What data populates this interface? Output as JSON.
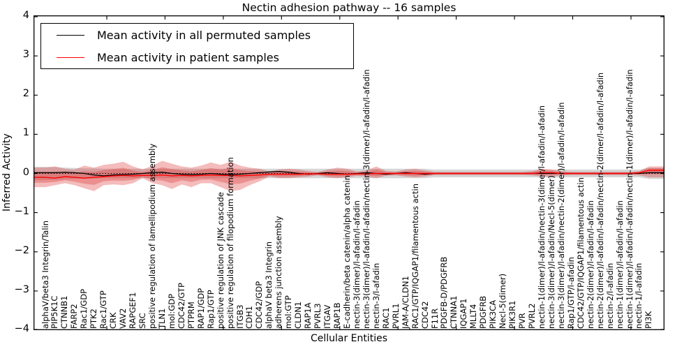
{
  "chart_data": {
    "type": "line",
    "title": "Nectin adhesion pathway -- 16 samples",
    "xlabel": "Cellular Entities",
    "ylabel": "Inferred Activity",
    "ylim": [
      -4,
      4
    ],
    "yticks": [
      4,
      3,
      2,
      1,
      0,
      -1,
      -2,
      -3,
      -4
    ],
    "grid": false,
    "zero_line": "dotted",
    "legend_position": "upper left",
    "colors": {
      "permuted_line": "#000000",
      "patient_line": "#ff0000",
      "patient_band": "#dd3333",
      "permuted_band": "#999999"
    },
    "categories": [
      "alphaV/beta3 Integrin/Talin",
      "PIP5K1C",
      "CTNNB1",
      "FARP2",
      "Rac1/GDP",
      "PTK2",
      "Rac1/GTP",
      "CRK",
      "VAV2",
      "RAPGEF1",
      "SRC",
      "positive regulation of lamellipodium assembly",
      "TLN1",
      "mol:GDP",
      "CDC42/GTP",
      "PTPRM",
      "RAP1/GDP",
      "Rap1/GTP",
      "positive regulation of JNK cascade",
      "positive regulation of filopodium formation",
      "ITGB3",
      "CDH1",
      "CDC42/GDP",
      "alphaV beta3 Integrin",
      "adherens junction assembly",
      "mol:GTP",
      "CLDN1",
      "RAP1A",
      "PVRL3",
      "ITGAV",
      "RAP1B",
      "E-cadherin/beta catenin/alpha catenin",
      "nectin-3(dimer)/l-afadin/l-afadin",
      "nectin-3(dimer)/l-afadin/l-afadin/nectin-3(dimer)/l-afadin/l-afadin",
      "nectin-3/l-afadin",
      "RAC1",
      "PVRL1",
      "JAM-A/CLDN1",
      "RAC1/GTP/IQGAP1/filamentous actin",
      "CDC42",
      "F11R",
      "PDGFB-D/PDGFRB",
      "CTNNA1",
      "IQGAP1",
      "MLLT4",
      "PDGFRB",
      "PIK3CA",
      "Necl-5(dimer)",
      "PIK3R1",
      "PVR",
      "PVRL2",
      "nectin-1(dimer)/l-afadin/nectin-3(dimer/l-afadin/l-afadin",
      "nectin-3(dimer)/l-afadin/Necl-5(dimer)",
      "nectin-3(dimer)/l-afadin/nectin-2(dimer)/l-afadin/l-afadin",
      "Rap1/GTP/l-afadin",
      "CDC42/GTP/IQGAP1/filamentous actin",
      "nectin-2(dimer)/l-afadin/l-afadin",
      "nectin-2(dimer)/l-afadin/l-afadin/nectin-2(dimer/l-afadin/l-afadin",
      "nectin-2/l-afadin",
      "nectin-1(dimer)/l-afadin/l-afadin",
      "nectin-1(dimer)/l-afadin/l-afadin/nectin-1(dimer)/l-afadin/l-afadin",
      "nectin-1/l-afadin",
      "PI3K"
    ],
    "series": [
      {
        "name": "Mean activity in all permuted samples",
        "color": "#000000",
        "values": [
          0.02,
          0.02,
          0.03,
          0.02,
          0.0,
          -0.04,
          -0.06,
          -0.04,
          -0.03,
          -0.02,
          0.0,
          0.02,
          0.03,
          0.0,
          -0.02,
          -0.03,
          -0.02,
          0.0,
          -0.02,
          -0.03,
          -0.02,
          0.0,
          0.02,
          0.04,
          0.05,
          0.03,
          0.0,
          -0.02,
          0.0,
          0.02,
          0.0,
          -0.02,
          0.0,
          0.02,
          0.0,
          -0.02,
          0.0,
          0.02,
          0.0,
          -0.02,
          0.0,
          0.0,
          0.0,
          0.0,
          0.0,
          0.0,
          0.0,
          0.0,
          0.0,
          0.0,
          0.0,
          0.0,
          0.0,
          0.0,
          0.0,
          0.0,
          0.0,
          0.0,
          0.0,
          0.0,
          0.0,
          0.0,
          0.02
        ]
      },
      {
        "name": "Mean activity in patient samples",
        "color": "#ff0000",
        "values": [
          -0.1,
          -0.12,
          -0.08,
          -0.1,
          -0.12,
          -0.1,
          -0.08,
          -0.06,
          -0.05,
          -0.06,
          -0.05,
          -0.05,
          -0.04,
          -0.06,
          -0.05,
          -0.06,
          -0.05,
          -0.04,
          -0.05,
          -0.05,
          -0.06,
          -0.05,
          -0.04,
          -0.02,
          -0.02,
          -0.02,
          -0.02,
          -0.01,
          -0.01,
          -0.02,
          -0.02,
          -0.02,
          -0.01,
          -0.01,
          0.0,
          0.0,
          0.0,
          0.0,
          0.0,
          0.0,
          0.0,
          0.0,
          0.0,
          0.0,
          0.0,
          0.0,
          0.0,
          0.0,
          0.0,
          0.0,
          0.0,
          0.02,
          0.02,
          0.0,
          0.0,
          0.0,
          0.0,
          0.0,
          0.0,
          0.0,
          0.0,
          0.02,
          0.08
        ]
      }
    ],
    "bands": [
      {
        "name": "patient samples activity envelope",
        "color": "#dd3333",
        "opacity": 0.33,
        "upper": [
          0.15,
          0.18,
          0.12,
          0.1,
          0.2,
          0.15,
          0.22,
          0.25,
          0.3,
          0.18,
          0.1,
          0.2,
          0.32,
          0.25,
          0.18,
          0.15,
          0.2,
          0.28,
          0.22,
          0.3,
          0.2,
          0.15,
          0.12,
          0.05,
          0.1,
          0.12,
          0.1,
          0.06,
          0.04,
          0.1,
          0.15,
          0.12,
          0.05,
          0.08,
          0.18,
          0.06,
          0.05,
          0.1,
          0.12,
          0.08,
          0.04,
          0.04,
          0.04,
          0.04,
          0.04,
          0.04,
          0.04,
          0.04,
          0.04,
          0.04,
          0.06,
          0.12,
          0.1,
          0.06,
          0.04,
          0.04,
          0.04,
          0.04,
          0.04,
          0.04,
          0.04,
          0.06,
          0.18
        ],
        "lower": [
          -0.35,
          -0.3,
          -0.25,
          -0.3,
          -0.38,
          -0.45,
          -0.3,
          -0.28,
          -0.3,
          -0.25,
          -0.12,
          -0.25,
          -0.3,
          -0.4,
          -0.28,
          -0.35,
          -0.25,
          -0.25,
          -0.35,
          -0.45,
          -0.42,
          -0.3,
          -0.2,
          -0.08,
          -0.12,
          -0.12,
          -0.1,
          -0.08,
          -0.05,
          -0.1,
          -0.12,
          -0.1,
          -0.06,
          -0.08,
          -0.12,
          -0.06,
          -0.05,
          -0.08,
          -0.1,
          -0.08,
          -0.04,
          -0.04,
          -0.04,
          -0.04,
          -0.04,
          -0.04,
          -0.04,
          -0.04,
          -0.04,
          -0.04,
          -0.05,
          -0.08,
          -0.08,
          -0.05,
          -0.04,
          -0.04,
          -0.04,
          -0.04,
          -0.04,
          -0.04,
          -0.04,
          -0.05,
          -0.1
        ]
      },
      {
        "name": "permuted samples activity envelope",
        "color": "#999999",
        "opacity": 0.4,
        "upper": [
          0.17,
          0.16,
          0.15,
          0.14,
          0.13,
          0.13,
          0.12,
          0.12,
          0.12,
          0.12,
          0.12,
          0.12,
          0.12,
          0.12,
          0.12,
          0.12,
          0.12,
          0.12,
          0.12,
          0.12,
          0.12,
          0.12,
          0.12,
          0.12,
          0.12,
          0.12,
          0.12,
          0.12,
          0.12,
          0.12,
          0.12,
          0.12,
          0.12,
          0.12,
          0.12,
          0.12,
          0.12,
          0.12,
          0.12,
          0.12,
          0.1,
          0.1,
          0.1,
          0.1,
          0.1,
          0.1,
          0.1,
          0.1,
          0.1,
          0.1,
          0.1,
          0.1,
          0.1,
          0.1,
          0.1,
          0.1,
          0.1,
          0.1,
          0.1,
          0.1,
          0.1,
          0.1,
          0.14
        ],
        "lower": [
          -0.17,
          -0.16,
          -0.15,
          -0.14,
          -0.13,
          -0.13,
          -0.12,
          -0.12,
          -0.12,
          -0.12,
          -0.12,
          -0.12,
          -0.12,
          -0.12,
          -0.12,
          -0.12,
          -0.12,
          -0.12,
          -0.12,
          -0.12,
          -0.12,
          -0.12,
          -0.12,
          -0.12,
          -0.12,
          -0.12,
          -0.12,
          -0.12,
          -0.12,
          -0.12,
          -0.12,
          -0.12,
          -0.12,
          -0.12,
          -0.12,
          -0.12,
          -0.12,
          -0.12,
          -0.12,
          -0.12,
          -0.1,
          -0.1,
          -0.1,
          -0.1,
          -0.1,
          -0.1,
          -0.1,
          -0.1,
          -0.1,
          -0.1,
          -0.1,
          -0.1,
          -0.1,
          -0.1,
          -0.1,
          -0.1,
          -0.1,
          -0.1,
          -0.1,
          -0.1,
          -0.1,
          -0.1,
          -0.14
        ]
      }
    ]
  }
}
